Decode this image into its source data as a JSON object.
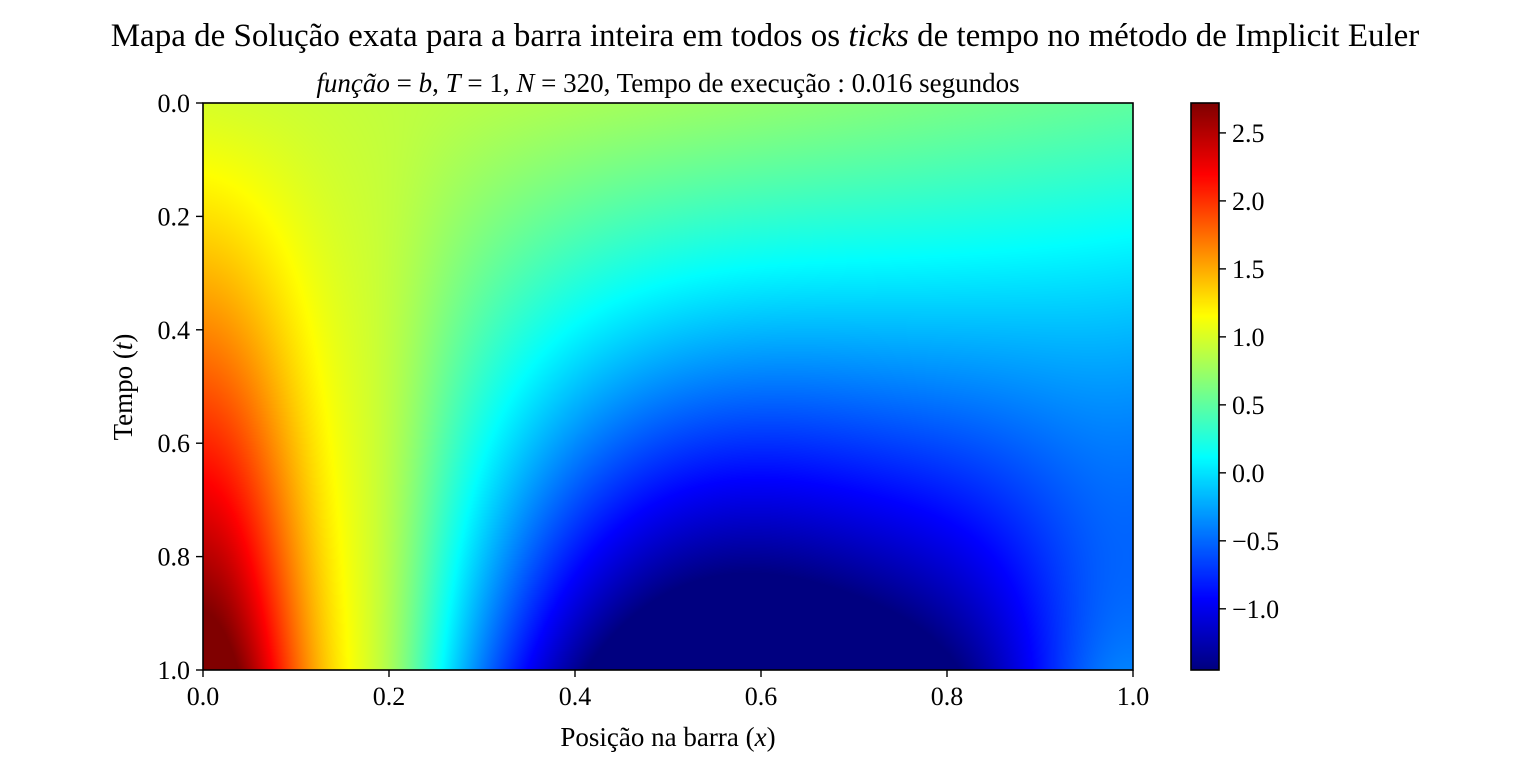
{
  "suptitle": {
    "pre": "Mapa de Solução exata para a barra inteira em todos os ",
    "italic": "ticks",
    "post": " de tempo no método de Implicit Euler"
  },
  "subtitle": {
    "func_label": "função",
    "func_value": "b",
    "T_label": "T",
    "T_value": "1",
    "N_label": "N",
    "N_value": "320",
    "runtime_label": "Tempo de execução",
    "runtime_value": "0.016 segundos"
  },
  "chart_data": {
    "type": "heatmap",
    "colormap": "jet",
    "xlabel": {
      "text": "Posição na barra ",
      "var": "x"
    },
    "ylabel": {
      "text": "Tempo ",
      "var": "t"
    },
    "xlim": [
      0.0,
      1.0
    ],
    "ylim": [
      0.0,
      1.0
    ],
    "y_inverted": true,
    "x_ticks": [
      "0.0",
      "0.2",
      "0.4",
      "0.6",
      "0.8",
      "1.0"
    ],
    "y_ticks": [
      "0.0",
      "0.2",
      "0.4",
      "0.6",
      "0.8",
      "1.0"
    ],
    "colorbar": {
      "min": -1.45,
      "max": 2.72,
      "ticks": [
        2.5,
        2.0,
        1.5,
        1.0,
        0.5,
        0.0,
        -0.5,
        -1.0
      ],
      "tick_labels": [
        "2.5",
        "2.0",
        "1.5",
        "1.0",
        "0.5",
        "0.0",
        "−0.5",
        "−1.0"
      ]
    },
    "sampled_values": {
      "t0.0": {
        "x0.0": 1.0,
        "x0.5": 0.7,
        "x1.0": 0.5
      },
      "t0.4": {
        "x0.0": 1.5,
        "x0.2": 1.1,
        "x0.5": 0.4,
        "x1.0": -0.3
      },
      "t0.8": {
        "x0.0": 2.2,
        "x0.2": 1.2,
        "x0.5": -0.5,
        "x0.8": -1.1,
        "x1.0": -0.3
      },
      "t1.0": {
        "x0.0": 2.72,
        "x0.2": 1.2,
        "x0.35": -0.2,
        "x0.6": -1.45,
        "x0.8": -1.0,
        "x1.0": 0.0
      }
    }
  }
}
